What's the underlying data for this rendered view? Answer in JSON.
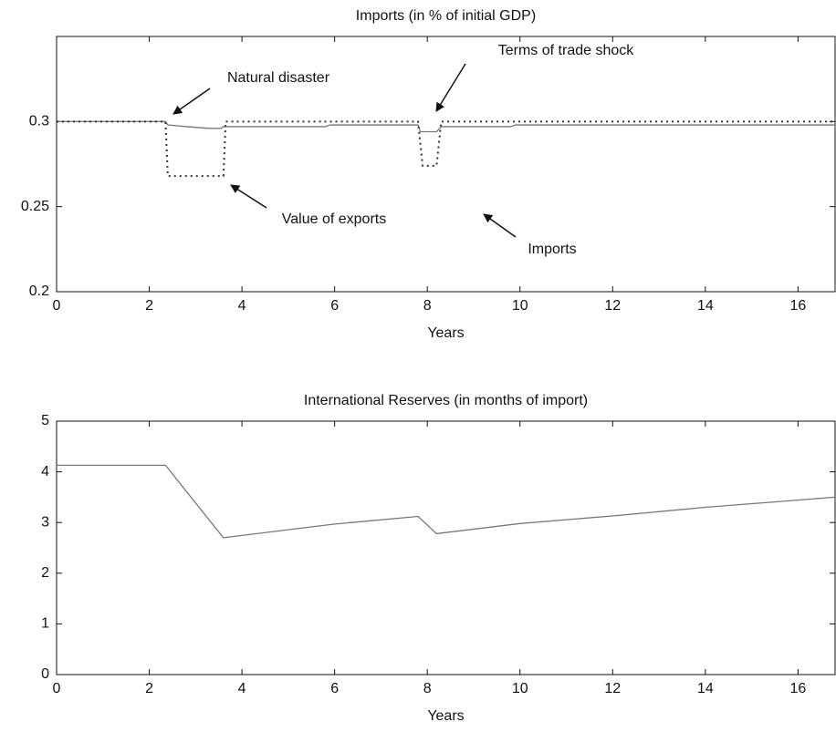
{
  "chart_data": [
    {
      "type": "line",
      "title": "Imports (in % of initial GDP)",
      "xlabel": "Years",
      "xlim": [
        0,
        16.8
      ],
      "xticks": [
        0,
        2,
        4,
        6,
        8,
        10,
        12,
        14,
        16
      ],
      "ylim": [
        0.2,
        0.35
      ],
      "yticks": [
        0.2,
        0.25,
        0.3
      ],
      "series": [
        {
          "name": "Imports",
          "color": "#777777",
          "style": "solid",
          "x": [
            0,
            2.35,
            2.4,
            2.8,
            3.3,
            3.55,
            3.6,
            5.8,
            5.9,
            7.8,
            7.85,
            8.2,
            8.3,
            9.8,
            9.9,
            16.8
          ],
          "values": [
            0.3,
            0.3,
            0.298,
            0.297,
            0.296,
            0.296,
            0.297,
            0.297,
            0.298,
            0.298,
            0.294,
            0.294,
            0.297,
            0.297,
            0.298,
            0.298
          ]
        },
        {
          "name": "Value of exports",
          "color": "#333333",
          "style": "dotted",
          "x": [
            0,
            2.35,
            2.4,
            3.6,
            3.65,
            7.8,
            7.9,
            8.2,
            8.3,
            16.8
          ],
          "values": [
            0.3,
            0.3,
            0.268,
            0.268,
            0.3,
            0.3,
            0.274,
            0.274,
            0.3,
            0.3
          ]
        }
      ],
      "annotations": [
        {
          "text": "Natural disaster"
        },
        {
          "text": "Terms of trade shock"
        },
        {
          "text": "Value of exports"
        },
        {
          "text": "Imports"
        }
      ]
    },
    {
      "type": "line",
      "title": "International Reserves (in months of import)",
      "xlabel": "Years",
      "xlim": [
        0,
        16.8
      ],
      "xticks": [
        0,
        2,
        4,
        6,
        8,
        10,
        12,
        14,
        16
      ],
      "ylim": [
        0,
        5
      ],
      "yticks": [
        0,
        1,
        2,
        3,
        4,
        5
      ],
      "series": [
        {
          "name": "International Reserves",
          "color": "#777777",
          "style": "solid",
          "x": [
            0,
            2.35,
            3.6,
            6,
            7.8,
            8.2,
            10,
            12,
            14,
            16.8
          ],
          "values": [
            4.13,
            4.13,
            2.7,
            2.97,
            3.12,
            2.78,
            2.98,
            3.13,
            3.3,
            3.5
          ]
        }
      ]
    }
  ]
}
